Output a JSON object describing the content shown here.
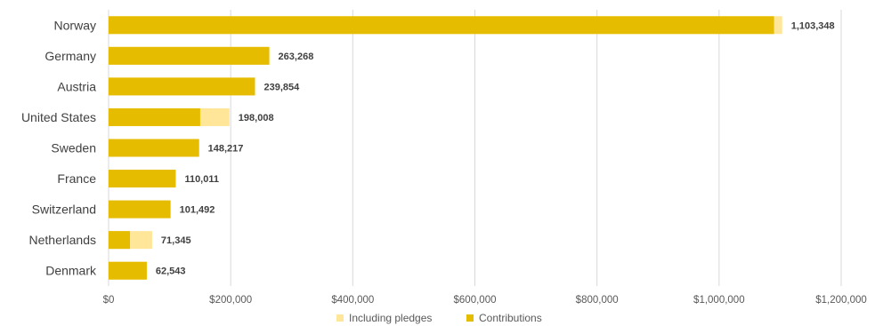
{
  "chart_data": {
    "type": "bar",
    "orientation": "horizontal",
    "categories": [
      "Norway",
      "Germany",
      "Austria",
      "United States",
      "Sweden",
      "France",
      "Switzerland",
      "Netherlands",
      "Denmark"
    ],
    "series": [
      {
        "name": "Contributions",
        "values": [
          1090000,
          263268,
          239854,
          150000,
          148217,
          110011,
          101492,
          35000,
          62543
        ],
        "color": "#e6bc00"
      },
      {
        "name": "Including pledges",
        "values": [
          1103348,
          263268,
          239854,
          198008,
          148217,
          110011,
          101492,
          71345,
          62543
        ],
        "color": "#ffe699"
      }
    ],
    "data_labels": [
      "1,103,348",
      "263,268",
      "239,854",
      "198,008",
      "148,217",
      "110,011",
      "101,492",
      "71,345",
      "62,543"
    ],
    "x_ticks": [
      0,
      200000,
      400000,
      600000,
      800000,
      1000000,
      1200000
    ],
    "x_tick_labels": [
      "$0",
      "$200,000",
      "$400,000",
      "$600,000",
      "$800,000",
      "$1,000,000",
      "$1,200,000"
    ],
    "xlim": [
      0,
      1200000
    ],
    "grid": "vertical",
    "legend": {
      "position": "bottom",
      "entries": [
        "Including pledges",
        "Contributions"
      ]
    }
  }
}
